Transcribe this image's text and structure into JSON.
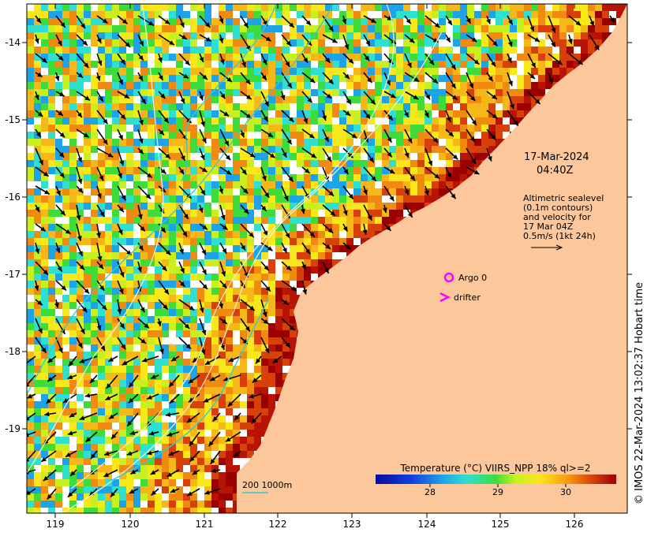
{
  "lon_ticks": [
    "119",
    "120",
    "121",
    "122",
    "123",
    "124",
    "125",
    "126"
  ],
  "lat_ticks": [
    "-14",
    "-15",
    "-16",
    "-17",
    "-18",
    "-19"
  ],
  "annotations": {
    "date": "17-Mar-2024",
    "time": "04:40Z",
    "legend_lines": [
      "Altimetric sealevel",
      "(0.1m contours)",
      "and velocity for",
      "17 Mar 04Z",
      "0.5m/s (1kt 24h)"
    ],
    "argo_label": "Argo 0",
    "drifter_label": "drifter",
    "scale_label": "200  1000m"
  },
  "colorbar": {
    "title": "Temperature (°C) VIIRS_NPP 18% ql>=2",
    "ticks": [
      "28",
      "29",
      "30"
    ]
  },
  "credit": "© IMOS 22-Mar-2024 13:02:37 Hobart time",
  "colors": {
    "land": "#fcc79a",
    "argo": "#ff00ff",
    "drifter": "#ff00ff",
    "bathy_contour": "#33cccc"
  }
}
